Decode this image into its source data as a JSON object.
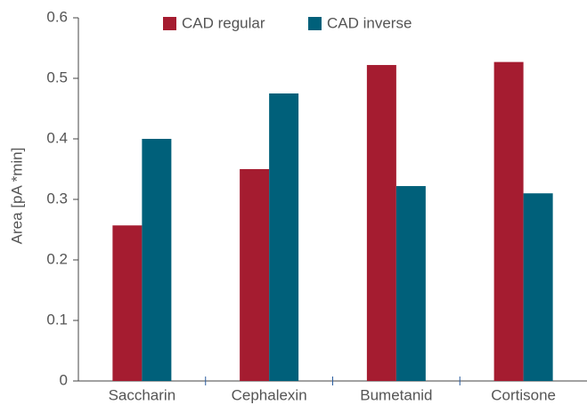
{
  "chart_data": {
    "type": "bar",
    "y_label": "Area [pA *min]",
    "categories": [
      "Saccharin",
      "Cephalexin",
      "Bumetanid",
      "Cortisone"
    ],
    "series": [
      {
        "name": "CAD regular",
        "color": "#a51c30",
        "values": [
          0.257,
          0.35,
          0.522,
          0.527
        ]
      },
      {
        "name": "CAD inverse",
        "color": "#00607a",
        "values": [
          0.4,
          0.475,
          0.322,
          0.31
        ]
      }
    ],
    "ylim": [
      0,
      0.6
    ],
    "yticks": [
      0,
      0.1,
      0.2,
      0.3,
      0.4,
      0.5,
      0.6
    ],
    "grid": false,
    "legend": "top"
  }
}
